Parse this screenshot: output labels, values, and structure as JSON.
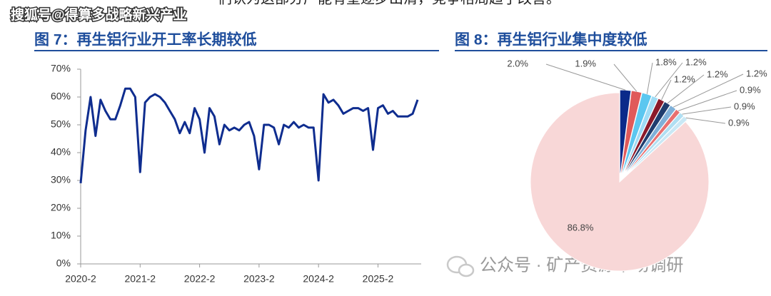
{
  "header_text": "们认为这部分产能有望逐步出清，竞争格局趋于改善。",
  "source_watermark": "搜狐号@得算多战略新兴产业",
  "bottom_watermark": "公众号 · 矿产资源市场调研",
  "chart_data": [
    {
      "type": "line",
      "title": "图 7：再生铝行业开工率长期较低",
      "color": "#0f2d8f",
      "x": [
        "2020-2",
        "2020-3",
        "2020-4",
        "2020-5",
        "2020-6",
        "2020-7",
        "2020-8",
        "2020-9",
        "2020-10",
        "2020-11",
        "2020-12",
        "2021-1",
        "2021-2",
        "2021-3",
        "2021-4",
        "2021-5",
        "2021-6",
        "2021-7",
        "2021-8",
        "2021-9",
        "2021-10",
        "2021-11",
        "2021-12",
        "2022-1",
        "2022-2",
        "2022-3",
        "2022-4",
        "2022-5",
        "2022-6",
        "2022-7",
        "2022-8",
        "2022-9",
        "2022-10",
        "2022-11",
        "2022-12",
        "2023-1",
        "2023-2",
        "2023-3",
        "2023-4",
        "2023-5",
        "2023-6",
        "2023-7",
        "2023-8",
        "2023-9",
        "2023-10",
        "2023-11",
        "2023-12",
        "2024-1",
        "2024-2",
        "2024-3",
        "2024-4",
        "2024-5",
        "2024-6",
        "2024-7",
        "2024-8",
        "2024-9",
        "2024-10",
        "2024-11",
        "2024-12",
        "2025-1",
        "2025-2",
        "2025-3",
        "2025-4",
        "2025-5",
        "2025-6",
        "2025-7",
        "2025-8",
        "2025-9",
        "2025-10"
      ],
      "values": [
        29,
        48,
        60,
        46,
        59,
        55,
        52,
        52,
        57,
        63,
        63,
        60,
        33,
        58,
        60,
        61,
        60,
        58,
        55,
        52,
        47,
        51,
        47,
        56,
        52,
        40,
        56,
        53,
        43,
        50,
        48,
        49,
        48,
        50,
        51,
        46,
        34,
        50,
        50,
        49,
        43,
        50,
        49,
        51,
        49,
        50,
        49,
        49,
        30,
        61,
        58,
        59,
        57,
        54,
        55,
        56,
        56,
        55,
        56,
        41,
        56,
        57,
        54,
        55,
        53,
        53,
        53,
        54,
        59
      ],
      "xticks": [
        "2020-2",
        "2021-2",
        "2022-2",
        "2023-2",
        "2024-2",
        "2025-2"
      ],
      "ylim": [
        0,
        70
      ],
      "yticks": [
        {
          "value": 0,
          "label": "0%"
        },
        {
          "value": 10,
          "label": "10%"
        },
        {
          "value": 20,
          "label": "20%"
        },
        {
          "value": 30,
          "label": "30%"
        },
        {
          "value": 40,
          "label": "40%"
        },
        {
          "value": 50,
          "label": "50%"
        },
        {
          "value": 60,
          "label": "60%"
        },
        {
          "value": 70,
          "label": "70%"
        }
      ]
    },
    {
      "type": "pie",
      "title": "图 8：再生铝行业集中度较低",
      "values": [
        2.0,
        1.9,
        1.8,
        1.2,
        1.2,
        1.2,
        1.2,
        0.9,
        0.9,
        0.9,
        86.8
      ],
      "value_labels": [
        "2.0%",
        "1.9%",
        "1.8%",
        "1.2%",
        "1.2%",
        "1.2%",
        "1.2%",
        "0.9%",
        "0.9%",
        "0.9%",
        "86.8%"
      ],
      "colors": [
        "#0b2a8a",
        "#e05a5a",
        "#5bc7f0",
        "#9fdcf5",
        "#8b1a2a",
        "#1f3d6e",
        "#7fb0d8",
        "#e87070",
        "#b0dff2",
        "#c9e8f5",
        "#f8d7d7"
      ]
    }
  ]
}
